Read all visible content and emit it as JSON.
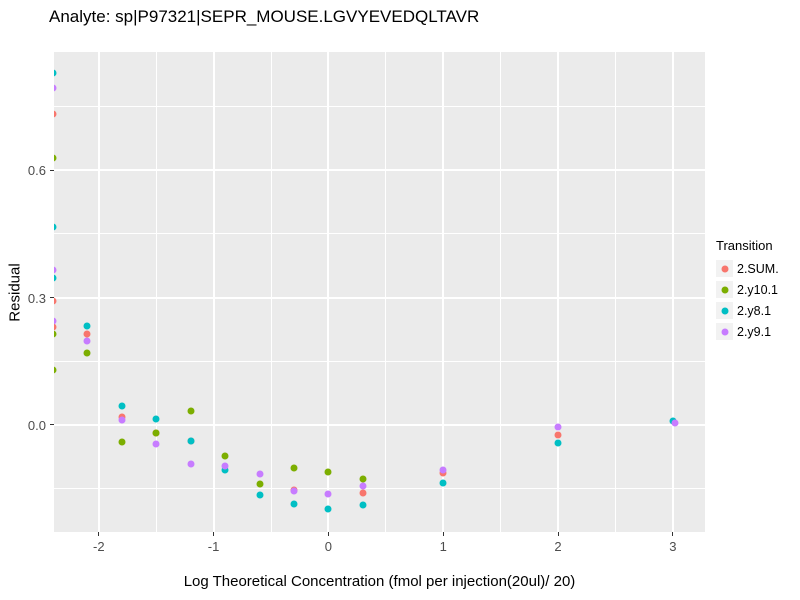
{
  "chart_data": {
    "type": "scatter",
    "title": "Analyte: sp|P97321|SEPR_MOUSE.LGVYEVEDQLTAVR",
    "xlabel": "Log Theoretical Concentration (fmol per injection(20ul)/ 20)",
    "ylabel": "Residual",
    "legend_title": "Transition",
    "legend_position": "right",
    "grid": true,
    "panel_bg": "#EBEBEB",
    "gridline_color": "#FFFFFF",
    "tick_label_color": "#4D4D4D",
    "xlim": [
      -2.39,
      3.28
    ],
    "ylim": [
      -0.252,
      0.878
    ],
    "x_major_ticks": [
      {
        "v": -2,
        "label": "-2"
      },
      {
        "v": -1,
        "label": "-1"
      },
      {
        "v": 0,
        "label": "0"
      },
      {
        "v": 1,
        "label": "1"
      },
      {
        "v": 2,
        "label": "2"
      },
      {
        "v": 3,
        "label": "3"
      }
    ],
    "x_minor_ticks": [
      -1.5,
      -0.5,
      0.5,
      1.5,
      2.5
    ],
    "y_major_ticks": [
      {
        "v": 0.0,
        "label": "0.0"
      },
      {
        "v": 0.3,
        "label": "0.3"
      },
      {
        "v": 0.6,
        "label": "0.6"
      }
    ],
    "y_minor_ticks": [
      -0.15,
      0.15,
      0.45,
      0.75
    ],
    "series": [
      {
        "name": "2.SUM.",
        "color": "#F8766D",
        "points": [
          [
            -2.4,
            0.732
          ],
          [
            -2.4,
            0.292
          ],
          [
            -2.4,
            0.231
          ],
          [
            -2.1,
            0.214
          ],
          [
            -1.8,
            0.019
          ],
          [
            -1.5,
            -0.019
          ],
          [
            -1.2,
            -0.037
          ],
          [
            -0.3,
            -0.152
          ],
          [
            0.3,
            -0.16
          ],
          [
            1,
            -0.112
          ],
          [
            2,
            -0.024
          ]
        ]
      },
      {
        "name": "2.y10.1",
        "color": "#7CAE00",
        "points": [
          [
            -2.4,
            0.628
          ],
          [
            -2.4,
            0.214
          ],
          [
            -2.4,
            0.129
          ],
          [
            -2.1,
            0.169
          ],
          [
            -1.8,
            -0.04
          ],
          [
            -1.5,
            -0.019
          ],
          [
            -1.2,
            0.033
          ],
          [
            -0.9,
            -0.073
          ],
          [
            -0.6,
            -0.139
          ],
          [
            -0.3,
            -0.101
          ],
          [
            0,
            -0.111
          ],
          [
            0.3,
            -0.127
          ]
        ]
      },
      {
        "name": "2.y8.1",
        "color": "#00BFC4",
        "points": [
          [
            -2.4,
            0.828
          ],
          [
            -2.4,
            0.466
          ],
          [
            -2.4,
            0.346
          ],
          [
            -2.1,
            0.233
          ],
          [
            -1.8,
            0.045
          ],
          [
            -1.5,
            0.014
          ],
          [
            -1.2,
            -0.037
          ],
          [
            -0.9,
            -0.106
          ],
          [
            -0.6,
            -0.165
          ],
          [
            -0.3,
            -0.186
          ],
          [
            0,
            -0.198
          ],
          [
            0.3,
            -0.188
          ],
          [
            1,
            -0.137
          ],
          [
            2,
            -0.042
          ],
          [
            3,
            0.009
          ]
        ]
      },
      {
        "name": "2.y9.1",
        "color": "#C77CFF",
        "points": [
          [
            -2.4,
            0.793
          ],
          [
            -2.4,
            0.365
          ],
          [
            -2.4,
            0.245
          ],
          [
            -2.1,
            0.198
          ],
          [
            -1.8,
            0.011
          ],
          [
            -1.5,
            -0.045
          ],
          [
            -1.2,
            -0.092
          ],
          [
            -0.9,
            -0.096
          ],
          [
            -0.6,
            -0.115
          ],
          [
            -0.3,
            -0.156
          ],
          [
            0,
            -0.162
          ],
          [
            0.3,
            -0.144
          ],
          [
            1,
            -0.106
          ],
          [
            2,
            -0.005
          ],
          [
            3.02,
            0.005
          ]
        ]
      }
    ]
  }
}
